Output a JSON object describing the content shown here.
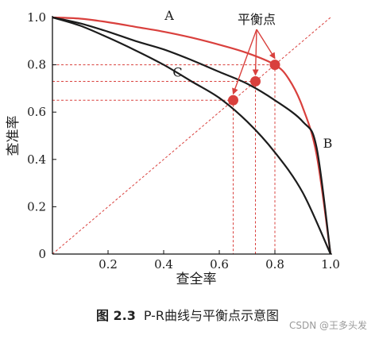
{
  "chart_data": {
    "type": "line",
    "x_ticks": [
      "0.2",
      "0.4",
      "0.6",
      "0.8",
      "1.0"
    ],
    "y_ticks": [
      "0",
      "0.2",
      "0.4",
      "0.6",
      "0.8",
      "1.0"
    ],
    "xlabel": "查全率",
    "ylabel": "查准率",
    "xlim": [
      0,
      1
    ],
    "ylim": [
      0,
      1
    ],
    "colors": {
      "red": "#d9403d",
      "black": "#1c1c1c"
    },
    "series": [
      {
        "name": "A",
        "color": "#d9403d",
        "x": [
          0.0,
          0.1,
          0.2,
          0.3,
          0.4,
          0.5,
          0.6,
          0.7,
          0.8,
          0.85,
          0.9,
          0.95,
          1.0
        ],
        "y": [
          1.0,
          0.995,
          0.98,
          0.96,
          0.94,
          0.915,
          0.885,
          0.85,
          0.8,
          0.74,
          0.62,
          0.42,
          0.0
        ]
      },
      {
        "name": "B",
        "color": "#1c1c1c",
        "x": [
          0.0,
          0.1,
          0.2,
          0.3,
          0.4,
          0.5,
          0.6,
          0.7,
          0.8,
          0.9,
          0.95,
          1.0
        ],
        "y": [
          1.0,
          0.975,
          0.94,
          0.9,
          0.865,
          0.82,
          0.77,
          0.72,
          0.65,
          0.56,
          0.45,
          0.0
        ]
      },
      {
        "name": "C",
        "color": "#1c1c1c",
        "x": [
          0.0,
          0.1,
          0.2,
          0.3,
          0.4,
          0.5,
          0.6,
          0.7,
          0.8,
          0.9,
          1.0
        ],
        "y": [
          1.0,
          0.965,
          0.915,
          0.86,
          0.8,
          0.73,
          0.66,
          0.56,
          0.43,
          0.26,
          0.0
        ]
      }
    ],
    "diagonal": {
      "x": [
        0,
        1
      ],
      "y": [
        0,
        1
      ]
    },
    "break_even": {
      "label": "平衡点",
      "points": [
        {
          "x": 0.8,
          "y": 0.8
        },
        {
          "x": 0.73,
          "y": 0.73
        },
        {
          "x": 0.65,
          "y": 0.65
        }
      ]
    },
    "grid": false
  },
  "caption": {
    "figure_number": "图 2.3",
    "text": "P-R曲线与平衡点示意图"
  },
  "watermark": "CSDN @王多头发"
}
